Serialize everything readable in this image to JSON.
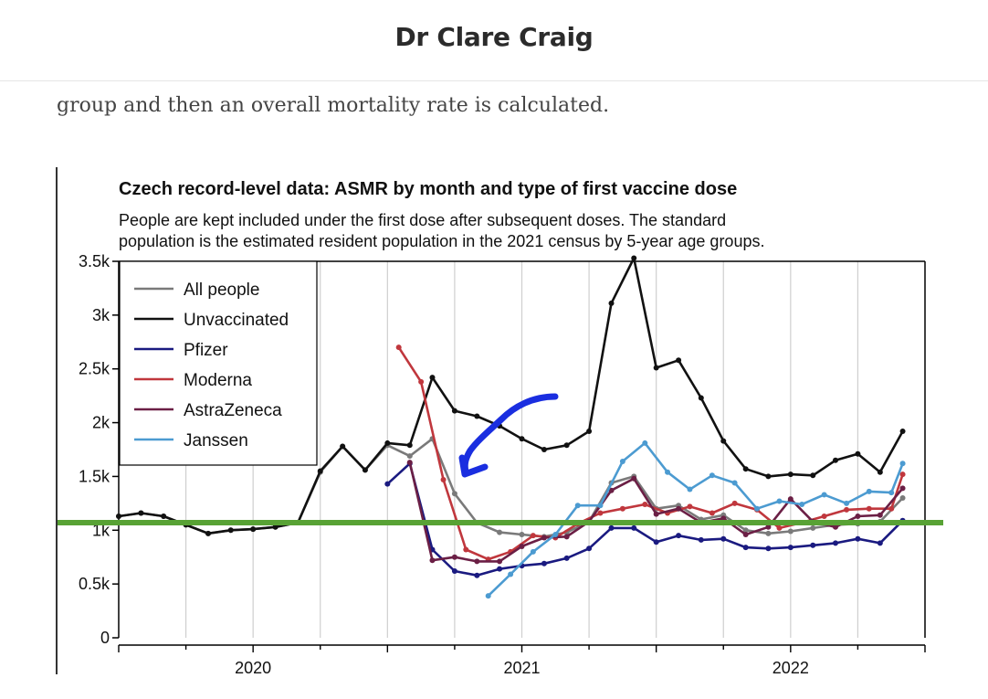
{
  "header": {
    "site_title": "Dr Clare Craig"
  },
  "article": {
    "text_line": "group and then an overall mortality rate is calculated."
  },
  "chart_data": {
    "type": "line",
    "title": "Czech record-level data: ASMR by month and type of first vaccine dose",
    "subtitle_lines": [
      "People are kept included under the first dose after subsequent doses. The standard",
      "population is the estimated resident population in the 2021 census by 5-year age groups."
    ],
    "ylim": [
      0,
      3500
    ],
    "xlim": [
      2019.5,
      2022.5
    ],
    "yticks": [
      0,
      500,
      1000,
      1500,
      2000,
      2500,
      3000,
      3500
    ],
    "ytick_labels": [
      "0",
      "0.5k",
      "1k",
      "1.5k",
      "2k",
      "2.5k",
      "3k",
      "3.5k"
    ],
    "xticks": [
      2020,
      2021,
      2022
    ],
    "xtick_labels": [
      "2020",
      "2021",
      "2022"
    ],
    "legend_position": "top-left",
    "reference_line": {
      "value": 1070,
      "color": "#58a235"
    },
    "series": [
      {
        "name": "All people",
        "color": "#7a7a7a",
        "points": [
          [
            2019.5,
            1130
          ],
          [
            2019.583,
            1160
          ],
          [
            2019.667,
            1130
          ],
          [
            2019.75,
            1050
          ],
          [
            2019.833,
            970
          ],
          [
            2019.917,
            1000
          ],
          [
            2020.0,
            1010
          ],
          [
            2020.083,
            1030
          ],
          [
            2020.167,
            1070
          ],
          [
            2020.25,
            1540
          ],
          [
            2020.333,
            1780
          ],
          [
            2020.417,
            1560
          ],
          [
            2020.5,
            1790
          ],
          [
            2020.583,
            1690
          ],
          [
            2020.667,
            1850
          ],
          [
            2020.75,
            1340
          ],
          [
            2020.833,
            1070
          ],
          [
            2020.917,
            980
          ],
          [
            2021.0,
            960
          ],
          [
            2021.083,
            940
          ],
          [
            2021.167,
            980
          ],
          [
            2021.25,
            1080
          ],
          [
            2021.333,
            1440
          ],
          [
            2021.417,
            1500
          ],
          [
            2021.5,
            1200
          ],
          [
            2021.583,
            1230
          ],
          [
            2021.667,
            1100
          ],
          [
            2021.75,
            1140
          ],
          [
            2021.833,
            1000
          ],
          [
            2021.917,
            970
          ],
          [
            2022.0,
            990
          ],
          [
            2022.083,
            1020
          ],
          [
            2022.167,
            1050
          ],
          [
            2022.25,
            1060
          ],
          [
            2022.333,
            1080
          ],
          [
            2022.417,
            1300
          ]
        ]
      },
      {
        "name": "Unvaccinated",
        "color": "#111111",
        "points": [
          [
            2019.5,
            1130
          ],
          [
            2019.583,
            1160
          ],
          [
            2019.667,
            1130
          ],
          [
            2019.75,
            1050
          ],
          [
            2019.833,
            970
          ],
          [
            2019.917,
            1000
          ],
          [
            2020.0,
            1010
          ],
          [
            2020.083,
            1030
          ],
          [
            2020.167,
            1070
          ],
          [
            2020.25,
            1550
          ],
          [
            2020.333,
            1780
          ],
          [
            2020.417,
            1560
          ],
          [
            2020.5,
            1810
          ],
          [
            2020.583,
            1790
          ],
          [
            2020.667,
            2420
          ],
          [
            2020.75,
            2110
          ],
          [
            2020.833,
            2060
          ],
          [
            2020.917,
            1970
          ],
          [
            2021.0,
            1850
          ],
          [
            2021.083,
            1750
          ],
          [
            2021.167,
            1790
          ],
          [
            2021.25,
            1920
          ],
          [
            2021.333,
            3110
          ],
          [
            2021.417,
            3530
          ],
          [
            2021.5,
            2510
          ],
          [
            2021.583,
            2580
          ],
          [
            2021.667,
            2230
          ],
          [
            2021.75,
            1830
          ],
          [
            2021.833,
            1570
          ],
          [
            2021.917,
            1500
          ],
          [
            2022.0,
            1520
          ],
          [
            2022.083,
            1510
          ],
          [
            2022.167,
            1650
          ],
          [
            2022.25,
            1710
          ],
          [
            2022.333,
            1540
          ],
          [
            2022.417,
            1920
          ]
        ]
      },
      {
        "name": "Pfizer",
        "color": "#1a1a80",
        "points": [
          [
            2020.5,
            1430
          ],
          [
            2020.583,
            1620
          ],
          [
            2020.667,
            820
          ],
          [
            2020.75,
            620
          ],
          [
            2020.833,
            580
          ],
          [
            2020.917,
            640
          ],
          [
            2021.0,
            670
          ],
          [
            2021.083,
            690
          ],
          [
            2021.167,
            740
          ],
          [
            2021.25,
            830
          ],
          [
            2021.333,
            1020
          ],
          [
            2021.417,
            1020
          ],
          [
            2021.5,
            890
          ],
          [
            2021.583,
            950
          ],
          [
            2021.667,
            910
          ],
          [
            2021.75,
            920
          ],
          [
            2021.833,
            840
          ],
          [
            2021.917,
            830
          ],
          [
            2022.0,
            840
          ],
          [
            2022.083,
            860
          ],
          [
            2022.167,
            880
          ],
          [
            2022.25,
            920
          ],
          [
            2022.333,
            880
          ],
          [
            2022.417,
            1090
          ]
        ]
      },
      {
        "name": "Moderna",
        "color": "#c0373d",
        "points": [
          [
            2020.542,
            2700
          ],
          [
            2020.625,
            2380
          ],
          [
            2020.708,
            1470
          ],
          [
            2020.792,
            820
          ],
          [
            2020.875,
            730
          ],
          [
            2020.958,
            800
          ],
          [
            2021.042,
            950
          ],
          [
            2021.125,
            930
          ],
          [
            2021.208,
            1060
          ],
          [
            2021.292,
            1160
          ],
          [
            2021.375,
            1200
          ],
          [
            2021.458,
            1240
          ],
          [
            2021.542,
            1160
          ],
          [
            2021.625,
            1220
          ],
          [
            2021.708,
            1160
          ],
          [
            2021.792,
            1250
          ],
          [
            2021.875,
            1190
          ],
          [
            2021.958,
            1020
          ],
          [
            2022.042,
            1070
          ],
          [
            2022.125,
            1130
          ],
          [
            2022.208,
            1190
          ],
          [
            2022.292,
            1200
          ],
          [
            2022.375,
            1200
          ],
          [
            2022.417,
            1520
          ]
        ]
      },
      {
        "name": "AstraZeneca",
        "color": "#6b1f45",
        "points": [
          [
            2020.583,
            1630
          ],
          [
            2020.667,
            720
          ],
          [
            2020.75,
            750
          ],
          [
            2020.833,
            710
          ],
          [
            2020.917,
            710
          ],
          [
            2021.0,
            850
          ],
          [
            2021.083,
            930
          ],
          [
            2021.167,
            940
          ],
          [
            2021.25,
            1080
          ],
          [
            2021.333,
            1370
          ],
          [
            2021.417,
            1480
          ],
          [
            2021.5,
            1150
          ],
          [
            2021.583,
            1200
          ],
          [
            2021.667,
            1070
          ],
          [
            2021.75,
            1110
          ],
          [
            2021.833,
            960
          ],
          [
            2021.917,
            1030
          ],
          [
            2022.0,
            1290
          ],
          [
            2022.083,
            1080
          ],
          [
            2022.167,
            1030
          ],
          [
            2022.25,
            1130
          ],
          [
            2022.333,
            1140
          ],
          [
            2022.417,
            1390
          ]
        ]
      },
      {
        "name": "Janssen",
        "color": "#4c9bd1",
        "points": [
          [
            2020.875,
            390
          ],
          [
            2020.958,
            590
          ],
          [
            2021.042,
            800
          ],
          [
            2021.125,
            960
          ],
          [
            2021.208,
            1230
          ],
          [
            2021.292,
            1230
          ],
          [
            2021.375,
            1640
          ],
          [
            2021.458,
            1810
          ],
          [
            2021.542,
            1540
          ],
          [
            2021.625,
            1380
          ],
          [
            2021.708,
            1510
          ],
          [
            2021.792,
            1440
          ],
          [
            2021.875,
            1200
          ],
          [
            2021.958,
            1270
          ],
          [
            2022.042,
            1240
          ],
          [
            2022.125,
            1330
          ],
          [
            2022.208,
            1250
          ],
          [
            2022.292,
            1360
          ],
          [
            2022.375,
            1350
          ],
          [
            2022.417,
            1620
          ]
        ]
      }
    ]
  },
  "colors": {
    "annotation_arrow": "#1a2ee0",
    "axis": "#000000",
    "grid": "#cfcfcf",
    "year_divider": "#9a9a9a"
  },
  "annotation": {
    "type": "hand-drawn arrow pointing at early 2021 vaccinated curves",
    "icon": "arrow-icon"
  }
}
